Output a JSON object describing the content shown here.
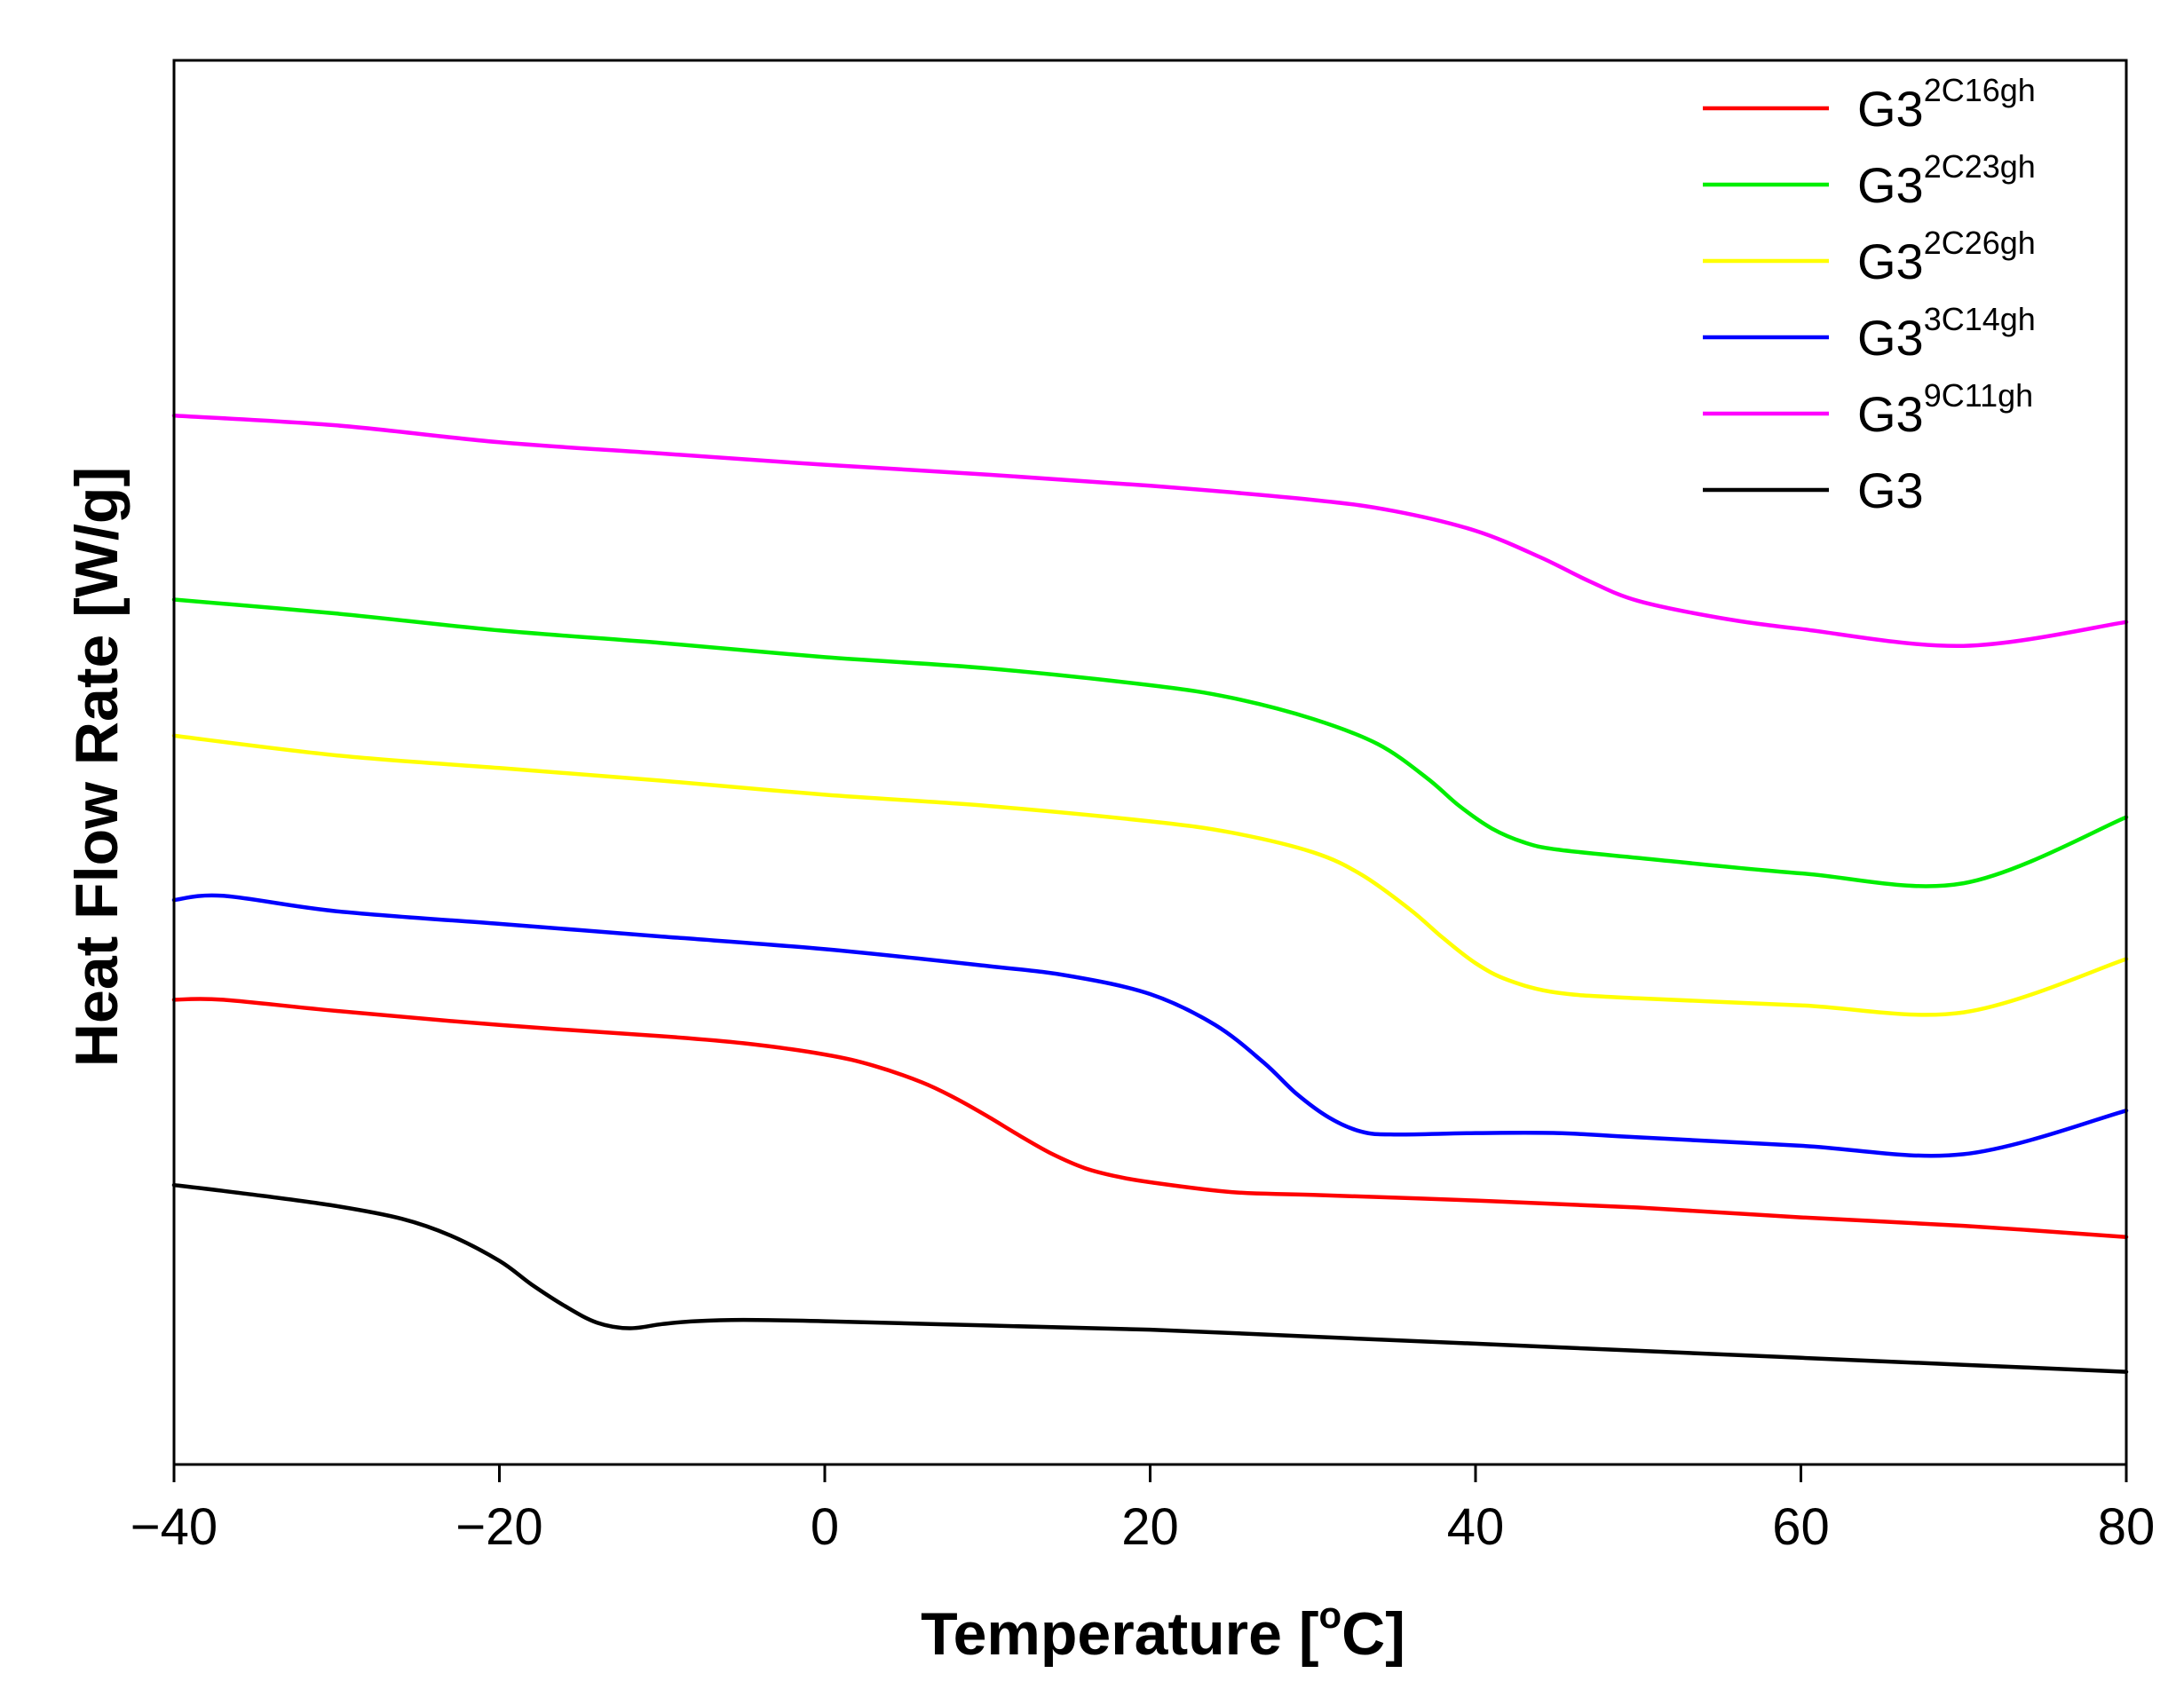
{
  "chart_data": {
    "type": "line",
    "title": "",
    "xlabel": "Temperature [°C]",
    "xlabel_parts": {
      "pre": "Temperature [",
      "sup": "o",
      "post": "C]"
    },
    "ylabel": "Heat Flow Rate [W/g]",
    "xlim": [
      -40,
      80
    ],
    "ylim": [
      0,
      100
    ],
    "x_ticks": [
      -40,
      -20,
      0,
      20,
      40,
      60,
      80
    ],
    "x_tick_labels": [
      "−40",
      "−20",
      "0",
      "20",
      "40",
      "60",
      "80"
    ],
    "y_ticks_shown": false,
    "grid": false,
    "legend_position": "top-right",
    "series": [
      {
        "name": "G3 2C16gh",
        "label_base": "G3",
        "label_sup": "2C16gh",
        "color": "#ff0000",
        "x": [
          -40,
          -37,
          -30,
          -20,
          -10,
          -5,
          0,
          3,
          6,
          8,
          10,
          12,
          14,
          16,
          18,
          20,
          25,
          30,
          40,
          50,
          60,
          70,
          80
        ],
        "y": [
          33.1,
          33.1,
          32.3,
          31.3,
          30.5,
          30.0,
          29.2,
          28.4,
          27.2,
          26.1,
          24.8,
          23.4,
          22.1,
          21.1,
          20.5,
          20.1,
          19.4,
          19.2,
          18.8,
          18.3,
          17.6,
          17.0,
          16.2
        ]
      },
      {
        "name": "G3 2C23gh",
        "label_base": "G3",
        "label_sup": "2C23gh",
        "color": "#00ee00",
        "x": [
          -40,
          -30,
          -20,
          -10,
          0,
          10,
          20,
          25,
          30,
          34,
          37,
          39,
          41,
          43,
          45,
          50,
          60,
          70,
          80
        ],
        "y": [
          61.6,
          60.6,
          59.4,
          58.5,
          57.5,
          56.7,
          55.5,
          54.6,
          53.1,
          51.3,
          48.9,
          46.9,
          45.3,
          44.3,
          43.8,
          43.2,
          42.1,
          41.4,
          46.1
        ]
      },
      {
        "name": "G3 2C26gh",
        "label_base": "G3",
        "label_sup": "2C26gh",
        "color": "#ffff00",
        "x": [
          -40,
          -30,
          -20,
          -10,
          0,
          10,
          20,
          25,
          30,
          33,
          36,
          38,
          40,
          42,
          45,
          50,
          60,
          70,
          80
        ],
        "y": [
          51.9,
          50.5,
          49.6,
          48.7,
          47.7,
          46.9,
          45.8,
          45.0,
          43.6,
          42.0,
          39.5,
          37.5,
          35.7,
          34.5,
          33.6,
          33.2,
          32.7,
          32.2,
          36.0
        ]
      },
      {
        "name": "G3 3C14gh",
        "label_base": "G3",
        "label_sup": "3C14gh",
        "color": "#0000ff",
        "x": [
          -40,
          -37,
          -30,
          -20,
          -10,
          0,
          10,
          15,
          20,
          24,
          27,
          29,
          31,
          33,
          35,
          40,
          45,
          50,
          60,
          70,
          80
        ],
        "y": [
          40.2,
          40.5,
          39.4,
          38.5,
          37.6,
          36.7,
          35.5,
          34.8,
          33.5,
          31.3,
          28.6,
          26.4,
          24.7,
          23.7,
          23.5,
          23.6,
          23.6,
          23.3,
          22.7,
          22.1,
          25.2
        ]
      },
      {
        "name": "G3 9C11gh",
        "label_base": "G3",
        "label_sup": "9C11gh",
        "color": "#ff00ff",
        "x": [
          -40,
          -30,
          -20,
          -10,
          0,
          10,
          20,
          30,
          35,
          40,
          44,
          47,
          50,
          55,
          60,
          70,
          80
        ],
        "y": [
          74.7,
          74.0,
          72.8,
          72.0,
          71.2,
          70.5,
          69.7,
          68.7,
          67.9,
          66.5,
          64.6,
          62.9,
          61.5,
          60.3,
          59.5,
          58.3,
          60.0
        ]
      },
      {
        "name": "G3",
        "label_base": "G3",
        "label_sup": "",
        "color": "#000000",
        "x": [
          -40,
          -35,
          -30,
          -26,
          -23,
          -20,
          -18,
          -16,
          -14,
          -12,
          -10,
          -8,
          -5,
          0,
          10,
          20,
          30,
          40,
          50,
          60,
          70,
          80
        ],
        "y": [
          19.9,
          19.2,
          18.4,
          17.5,
          16.3,
          14.5,
          12.8,
          11.3,
          10.1,
          9.7,
          10.0,
          10.2,
          10.3,
          10.2,
          9.9,
          9.6,
          9.1,
          8.6,
          8.1,
          7.6,
          7.1,
          6.6
        ]
      }
    ]
  }
}
